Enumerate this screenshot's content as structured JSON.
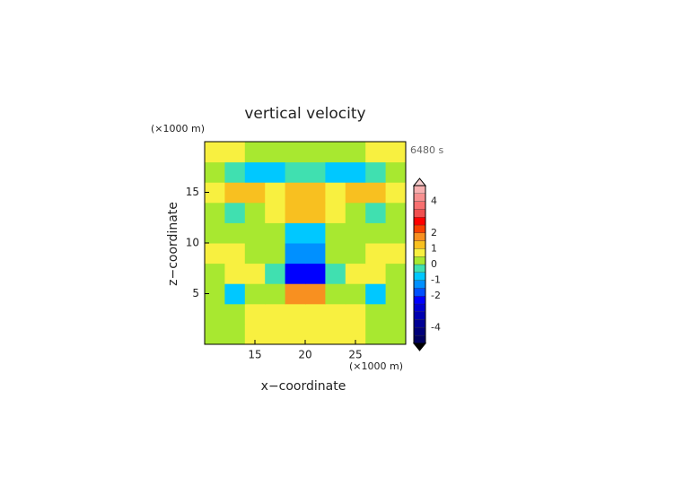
{
  "chart_data": {
    "type": "contour",
    "title": "vertical velocity",
    "time_label": "6480 s",
    "x_label": "x−coordinate",
    "y_label": "z−coordinate",
    "x_unit": "(×1000 m)",
    "y_unit": "(×1000 m)",
    "xlim": [
      10,
      30
    ],
    "ylim": [
      0,
      20
    ],
    "xticks": [
      15,
      20,
      25
    ],
    "yticks": [
      5,
      10,
      15
    ],
    "x": [
      11,
      13,
      15,
      17,
      19,
      21,
      23,
      25,
      27,
      29
    ],
    "y": [
      1,
      3,
      5,
      7,
      9,
      11,
      13,
      15,
      17,
      19
    ],
    "values": [
      [
        0.2,
        0.3,
        0.6,
        0.6,
        0.6,
        0.6,
        0.6,
        0.6,
        0.3,
        0.2
      ],
      [
        0.3,
        0.3,
        0.6,
        0.7,
        0.8,
        0.8,
        0.7,
        0.6,
        0.3,
        0.3
      ],
      [
        0.2,
        -0.6,
        0.3,
        0.2,
        1.6,
        1.6,
        0.2,
        0.3,
        -0.6,
        0.2
      ],
      [
        0.3,
        0.8,
        0.6,
        -0.3,
        -2.3,
        -2.3,
        -0.3,
        0.6,
        0.8,
        0.3
      ],
      [
        0.6,
        0.7,
        0.4,
        0.0,
        -1.5,
        -1.5,
        0.0,
        0.4,
        0.7,
        0.6
      ],
      [
        0.3,
        0.2,
        0.3,
        0.1,
        -0.7,
        -0.7,
        0.1,
        0.3,
        0.2,
        0.3
      ],
      [
        0.2,
        -0.3,
        0.3,
        0.6,
        1.2,
        1.2,
        0.6,
        0.3,
        -0.3,
        0.2
      ],
      [
        0.6,
        1.3,
        1.2,
        0.5,
        1.0,
        1.0,
        0.5,
        1.2,
        1.3,
        0.6
      ],
      [
        0.2,
        -0.2,
        -0.6,
        -0.6,
        -0.4,
        -0.4,
        -0.6,
        -0.6,
        -0.2,
        0.2
      ],
      [
        0.7,
        0.7,
        0.3,
        0.2,
        0.3,
        0.3,
        0.2,
        0.3,
        0.7,
        0.7
      ]
    ],
    "levels": [
      -5,
      -4.5,
      -4,
      -3.5,
      -3,
      -2.5,
      -2,
      -1.5,
      -1,
      -0.5,
      0,
      0.5,
      1,
      1.5,
      2,
      2.5,
      3,
      3.5,
      4,
      4.5,
      5
    ],
    "colors": [
      "#000060",
      "#00007a",
      "#000095",
      "#0000b0",
      "#0000d0",
      "#0000ff",
      "#0050ff",
      "#0090ff",
      "#00c8ff",
      "#40e0b0",
      "#a8e830",
      "#f8f040",
      "#f8c020",
      "#f89020",
      "#f84000",
      "#ff0000",
      "#f05050",
      "#f87070",
      "#f89090",
      "#f8b0b0"
    ],
    "extend_colors": [
      "#000000",
      "#f8d0d0"
    ],
    "colorbar_ticks": [
      4,
      2,
      1,
      0,
      -1,
      -2,
      -4
    ]
  }
}
